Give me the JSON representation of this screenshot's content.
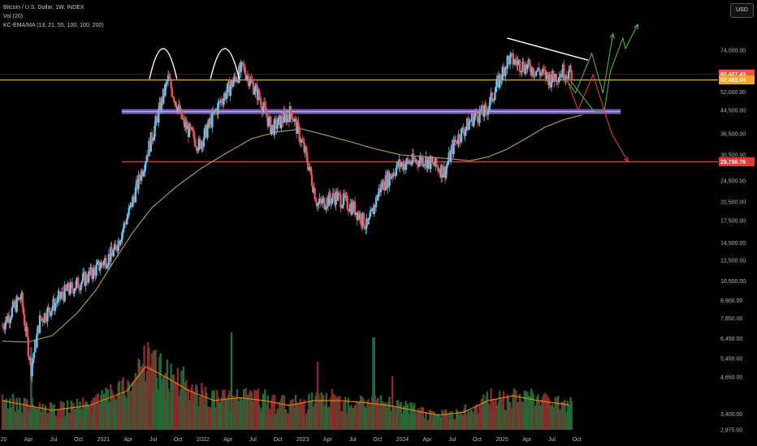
{
  "legend": {
    "title": "Bitcoin / U.S. Dollar, 1W, INDEX",
    "vol": "Vol (20)",
    "indicator": "KC-EMA/MA (13, 21, 55, 100, 100, 200)"
  },
  "currency_button": "USD",
  "colors": {
    "bull": "#26a69a",
    "bull_body": "#5bc8f5",
    "bear": "#ef5350",
    "ma": "#b5a642",
    "vol_ma": "#f57c00",
    "orange_level": "#f5a623",
    "purple_zone": "#8e6bd8",
    "red_level": "#e53935",
    "green_arrow": "#4caf50",
    "red_arrow": "#e53935",
    "trend_line": "#ffffff"
  },
  "chart_data": {
    "type": "candlestick",
    "y_scale": "log",
    "ylim": [
      2975,
      100000
    ],
    "x_range": [
      "2020-01",
      "2025-12"
    ],
    "x_ticks": [
      "20",
      "Apr",
      "Jul",
      "Oct",
      "2021",
      "Apr",
      "Jul",
      "Oct",
      "2022",
      "Apr",
      "Jul",
      "Oct",
      "2023",
      "Apr",
      "Jul",
      "Oct",
      "2024",
      "Apr",
      "Jul",
      "Oct",
      "2025",
      "Apr",
      "Jul",
      "Oct"
    ],
    "y_ticks": [
      74000,
      52000,
      44500,
      36500,
      30500,
      24500,
      20500,
      17500,
      14500,
      12500,
      10500,
      8900,
      7650,
      6450,
      5450,
      4650,
      3400,
      2975
    ],
    "y_tick_labels": [
      "74,000.00",
      "52,000.00",
      "44,500.00",
      "36,500.00",
      "30,500.00",
      "24,500.00",
      "20,500.00",
      "17,500.00",
      "14,500.00",
      "12,500.00",
      "10,500.00",
      "8,900.00",
      "7,650.00",
      "6,450.00",
      "5,450.00",
      "4,650.00",
      "3,400.00",
      "2,975.00"
    ],
    "price_labels": [
      {
        "value": 60467.43,
        "text": "60,467.43",
        "color": "#ef5350"
      },
      {
        "value": 57492.04,
        "text": "57,492.04",
        "color": "#f5a623"
      },
      {
        "value": 28756.76,
        "text": "28,756.76",
        "color": "#e53935"
      }
    ],
    "levels": [
      {
        "name": "resistance",
        "value": 57492,
        "color": "#f5a623"
      },
      {
        "name": "support-zone",
        "value": 44000,
        "color": "#8e6bd8"
      },
      {
        "name": "support",
        "value": 28757,
        "color": "#e53935"
      }
    ],
    "anchors": [
      {
        "t": 0.0,
        "p": 7200
      },
      {
        "t": 1.5,
        "p": 9200
      },
      {
        "t": 2.3,
        "p": 5000
      },
      {
        "t": 3.0,
        "p": 7500
      },
      {
        "t": 5.0,
        "p": 9500
      },
      {
        "t": 7.0,
        "p": 11000
      },
      {
        "t": 9.0,
        "p": 13500
      },
      {
        "t": 10.2,
        "p": 19000
      },
      {
        "t": 11.8,
        "p": 33000
      },
      {
        "t": 13.3,
        "p": 58000
      },
      {
        "t": 14.5,
        "p": 40000
      },
      {
        "t": 15.8,
        "p": 33000
      },
      {
        "t": 17.5,
        "p": 48000
      },
      {
        "t": 19.3,
        "p": 64000
      },
      {
        "t": 20.6,
        "p": 50000
      },
      {
        "t": 21.6,
        "p": 38000
      },
      {
        "t": 23.2,
        "p": 44000
      },
      {
        "t": 24.4,
        "p": 30000
      },
      {
        "t": 25.3,
        "p": 20000
      },
      {
        "t": 26.8,
        "p": 21500
      },
      {
        "t": 28.3,
        "p": 19300
      },
      {
        "t": 29.3,
        "p": 16500
      },
      {
        "t": 30.3,
        "p": 23000
      },
      {
        "t": 31.8,
        "p": 28000
      },
      {
        "t": 33.8,
        "p": 29500
      },
      {
        "t": 35.5,
        "p": 26500
      },
      {
        "t": 36.3,
        "p": 34000
      },
      {
        "t": 37.8,
        "p": 42000
      },
      {
        "t": 38.8,
        "p": 44000
      },
      {
        "t": 39.4,
        "p": 51000
      },
      {
        "t": 40.6,
        "p": 69000
      },
      {
        "t": 41.8,
        "p": 65000
      },
      {
        "t": 43.0,
        "p": 62000
      },
      {
        "t": 44.0,
        "p": 58000
      },
      {
        "t": 45.0,
        "p": 62000
      },
      {
        "t": 45.7,
        "p": 60467
      }
    ],
    "ma_line": [
      {
        "t": 0.0,
        "p": 6300
      },
      {
        "t": 2.0,
        "p": 6250
      },
      {
        "t": 4.0,
        "p": 6600
      },
      {
        "t": 6.0,
        "p": 8000
      },
      {
        "t": 7.5,
        "p": 9700
      },
      {
        "t": 9.0,
        "p": 12500
      },
      {
        "t": 10.5,
        "p": 15900
      },
      {
        "t": 12.0,
        "p": 19500
      },
      {
        "t": 14.0,
        "p": 23400
      },
      {
        "t": 16.0,
        "p": 27300
      },
      {
        "t": 18.0,
        "p": 31000
      },
      {
        "t": 20.0,
        "p": 35000
      },
      {
        "t": 22.0,
        "p": 37000
      },
      {
        "t": 24.0,
        "p": 38000
      },
      {
        "t": 26.0,
        "p": 36000
      },
      {
        "t": 28.0,
        "p": 34000
      },
      {
        "t": 30.0,
        "p": 32000
      },
      {
        "t": 32.0,
        "p": 30500
      },
      {
        "t": 34.0,
        "p": 30000
      },
      {
        "t": 36.0,
        "p": 29500
      },
      {
        "t": 37.5,
        "p": 29000
      },
      {
        "t": 39.0,
        "p": 30000
      },
      {
        "t": 40.5,
        "p": 32000
      },
      {
        "t": 42.0,
        "p": 35000
      },
      {
        "t": 43.5,
        "p": 38500
      },
      {
        "t": 45.0,
        "p": 41000
      },
      {
        "t": 46.7,
        "p": 43000
      }
    ],
    "vol_anchors": [
      {
        "t": 0.0,
        "v": 0.3
      },
      {
        "t": 2.0,
        "v": 0.25
      },
      {
        "t": 4.0,
        "v": 0.2
      },
      {
        "t": 7.0,
        "v": 0.25
      },
      {
        "t": 10.0,
        "v": 0.4
      },
      {
        "t": 11.5,
        "v": 0.65
      },
      {
        "t": 13.0,
        "v": 0.55
      },
      {
        "t": 15.0,
        "v": 0.4
      },
      {
        "t": 17.0,
        "v": 0.3
      },
      {
        "t": 19.0,
        "v": 0.33
      },
      {
        "t": 21.0,
        "v": 0.3
      },
      {
        "t": 23.0,
        "v": 0.25
      },
      {
        "t": 25.0,
        "v": 0.3
      },
      {
        "t": 27.0,
        "v": 0.3
      },
      {
        "t": 29.0,
        "v": 0.28
      },
      {
        "t": 31.0,
        "v": 0.25
      },
      {
        "t": 33.0,
        "v": 0.2
      },
      {
        "t": 35.0,
        "v": 0.15
      },
      {
        "t": 37.0,
        "v": 0.18
      },
      {
        "t": 39.0,
        "v": 0.3
      },
      {
        "t": 41.0,
        "v": 0.35
      },
      {
        "t": 43.0,
        "v": 0.3
      },
      {
        "t": 45.7,
        "v": 0.25
      }
    ],
    "vol_spikes": [
      {
        "t": 2.3,
        "v": 0.85
      },
      {
        "t": 11.7,
        "v": 0.9
      },
      {
        "t": 12.6,
        "v": 0.75
      },
      {
        "t": 14.5,
        "v": 0.65
      },
      {
        "t": 18.4,
        "v": 1.0
      },
      {
        "t": 25.3,
        "v": 0.7
      },
      {
        "t": 29.8,
        "v": 0.95
      },
      {
        "t": 31.3,
        "v": 0.55
      }
    ],
    "annotations": [
      {
        "name": "head-arc-1",
        "type": "arc",
        "t": [
          11.8,
          14.0
        ],
        "p": 58000,
        "peak": 75000
      },
      {
        "name": "head-arc-2",
        "type": "arc",
        "t": [
          16.7,
          19.0
        ],
        "p": 58000,
        "peak": 75000
      },
      {
        "name": "trend-line",
        "type": "line",
        "points": [
          [
            40.5,
            82000
          ],
          [
            47.0,
            68000
          ]
        ]
      },
      {
        "name": "bull-path-1",
        "type": "green-path",
        "points": [
          [
            45.0,
            60000
          ],
          [
            46.0,
            51500
          ],
          [
            47.3,
            72000
          ],
          [
            48.2,
            51500
          ],
          [
            49.0,
            85000
          ]
        ]
      },
      {
        "name": "bull-path-2",
        "type": "green-path",
        "points": [
          [
            45.6,
            57000
          ],
          [
            47.5,
            44000
          ],
          [
            48.3,
            44000
          ],
          [
            48.8,
            62000
          ],
          [
            49.8,
            82000
          ],
          [
            50.0,
            75000
          ],
          [
            51.0,
            92000
          ]
        ]
      },
      {
        "name": "bear-path",
        "type": "red-path",
        "points": [
          [
            45.3,
            58000
          ],
          [
            46.2,
            44500
          ],
          [
            47.4,
            60000
          ],
          [
            48.3,
            44500
          ],
          [
            48.9,
            36500
          ],
          [
            50.2,
            28800
          ]
        ]
      }
    ]
  }
}
